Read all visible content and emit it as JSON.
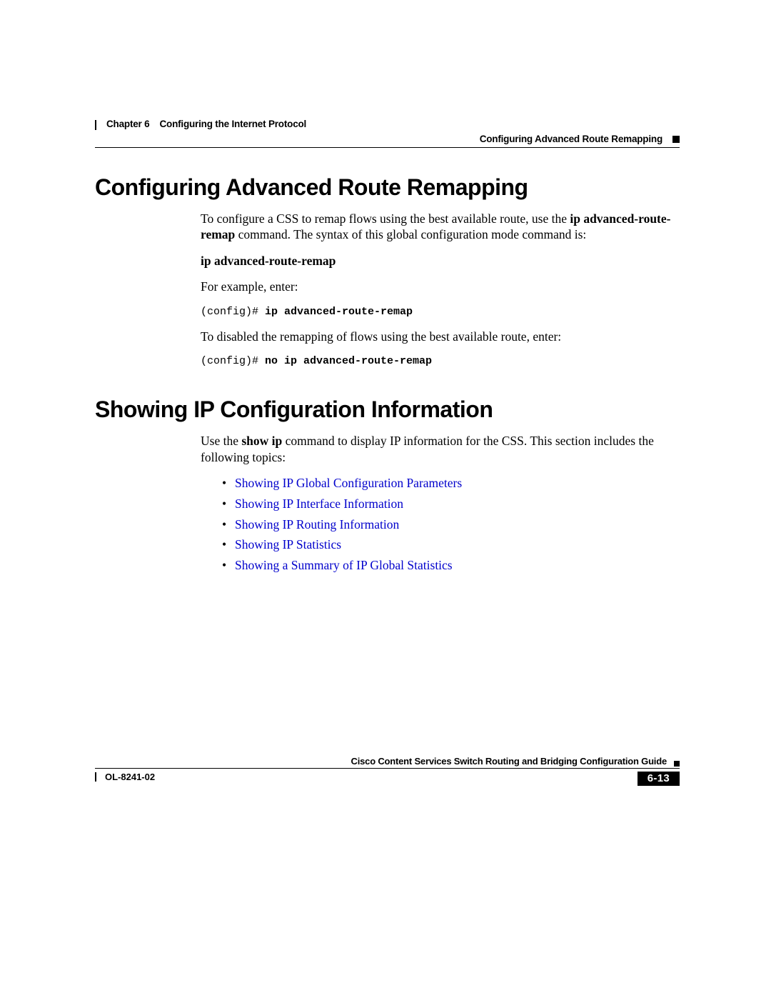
{
  "header": {
    "chapter_label": "Chapter 6",
    "chapter_title": "Configuring the Internet Protocol",
    "section_title": "Configuring Advanced Route Remapping"
  },
  "section1": {
    "heading": "Configuring Advanced Route Remapping",
    "p1_pre": "To configure a CSS to remap flows using the best available route, use the ",
    "p1_bold": "ip advanced-route-remap",
    "p1_post": " command. The syntax of this global configuration mode command is:",
    "cmd_syntax": "ip advanced-route-remap",
    "p2": "For example, enter:",
    "code1_prompt": "(config)# ",
    "code1_cmd": "ip advanced-route-remap",
    "p3": "To disabled the remapping of flows using the best available route, enter:",
    "code2_prompt": "(config)# ",
    "code2_cmd": "no ip advanced-route-remap"
  },
  "section2": {
    "heading": "Showing IP Configuration Information",
    "p1_pre": "Use the ",
    "p1_bold": "show ip",
    "p1_post": " command to display IP information for the CSS. This section includes the following topics:",
    "links": [
      "Showing IP Global Configuration Parameters",
      "Showing IP Interface Information",
      "Showing IP Routing Information",
      "Showing IP Statistics",
      "Showing a Summary of IP Global Statistics"
    ]
  },
  "footer": {
    "guide": "Cisco Content Services Switch Routing and Bridging Configuration Guide",
    "doc_id": "OL-8241-02",
    "page": "6-13"
  },
  "colors": {
    "link": "#0000cc",
    "text": "#000000",
    "background": "#ffffff"
  },
  "typography": {
    "heading_font": "Arial",
    "heading_size_pt": 24,
    "body_font": "Times New Roman",
    "body_size_pt": 13,
    "mono_font": "Courier New",
    "header_footer_size_pt": 10
  }
}
